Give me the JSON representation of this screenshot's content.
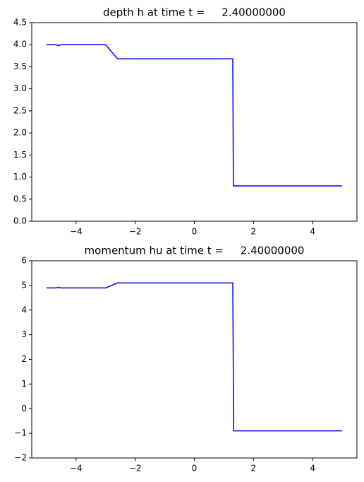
{
  "chart_data": [
    {
      "type": "line",
      "title": "depth h at time t =     2.40000000",
      "x": [
        -5,
        -4.7,
        -4.6,
        -4.5,
        -3.0,
        -2.6,
        -2.4,
        1.3,
        1.32,
        1.35,
        5
      ],
      "values": [
        4.0,
        4.0,
        3.98,
        4.0,
        4.0,
        3.68,
        3.68,
        3.68,
        0.8,
        0.8,
        0.8
      ],
      "color": "#0000ff",
      "xlim": [
        -5.5,
        5.5
      ],
      "xticks": [
        {
          "value": -4,
          "label": "−4"
        },
        {
          "value": -2,
          "label": "−2"
        },
        0,
        2,
        4
      ],
      "ylim": [
        0,
        4.5
      ],
      "yticks": [
        {
          "value": 0,
          "label": "0.0"
        },
        0.5,
        {
          "value": 1,
          "label": "1.0"
        },
        1.5,
        {
          "value": 2,
          "label": "2.0"
        },
        2.5,
        {
          "value": 3,
          "label": "3.0"
        },
        3.5,
        {
          "value": 4,
          "label": "4.0"
        },
        4.5
      ]
    },
    {
      "type": "line",
      "title": "momentum hu at time t =     2.40000000",
      "x": [
        -5,
        -4.7,
        -4.6,
        -4.5,
        -3.0,
        -2.6,
        -2.4,
        1.3,
        1.33,
        1.35,
        5
      ],
      "values": [
        4.9,
        4.9,
        4.92,
        4.9,
        4.9,
        5.1,
        5.1,
        5.1,
        -0.9,
        -0.9,
        -0.9
      ],
      "color": "#0000ff",
      "xlim": [
        -5.5,
        5.5
      ],
      "xticks": [
        {
          "value": -4,
          "label": "−4"
        },
        {
          "value": -2,
          "label": "−2"
        },
        0,
        2,
        4
      ],
      "ylim": [
        -2,
        6
      ],
      "yticks": [
        {
          "value": -2,
          "label": "−2"
        },
        {
          "value": -1,
          "label": "−1"
        },
        0,
        1,
        2,
        3,
        4,
        5,
        6
      ]
    }
  ]
}
